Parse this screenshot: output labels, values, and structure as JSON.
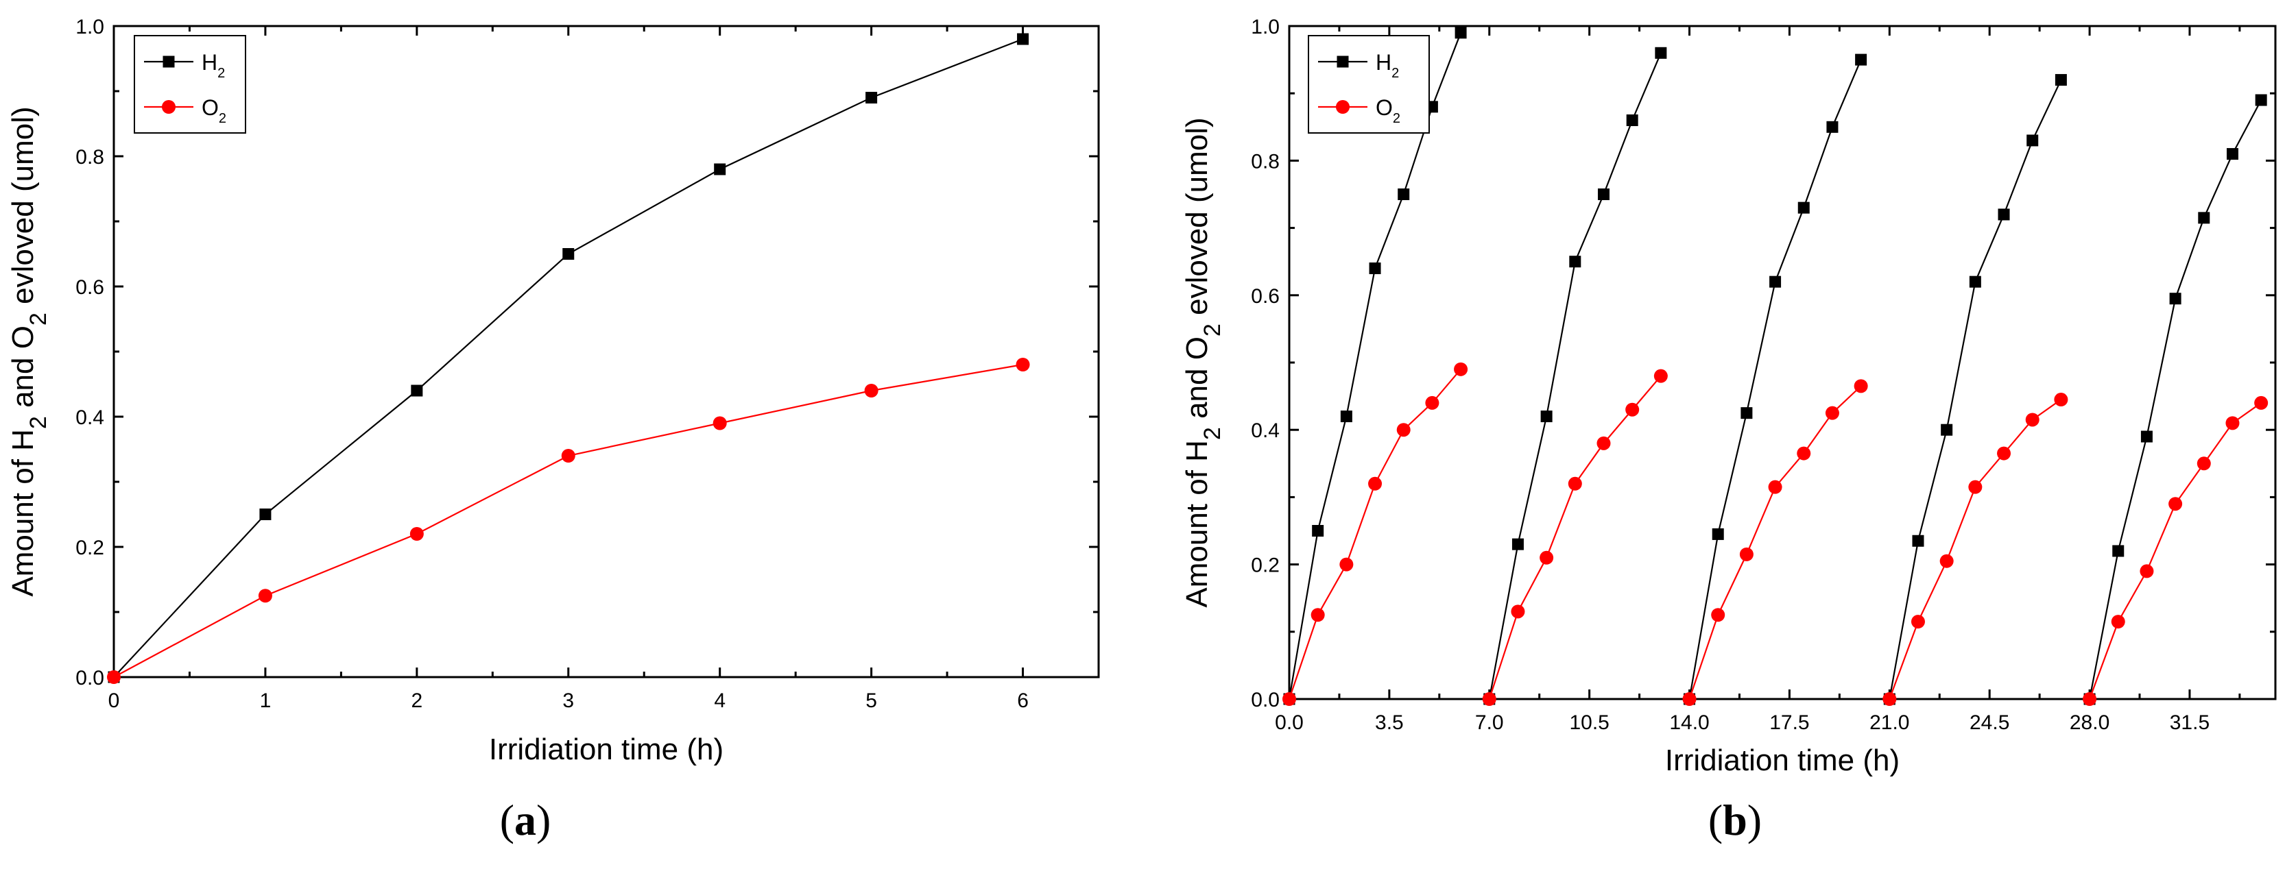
{
  "chart_data": [
    {
      "type": "line",
      "panel": "a",
      "panel_label": {
        "open": "(",
        "letter": "a",
        "close": ")"
      },
      "xlabel": "Irridiation time (h)",
      "ylabel": {
        "pre": "Amount of H",
        "sub1": "2",
        "mid": " and O",
        "sub2": "2",
        "post": " evloved (umol)"
      },
      "xlim": [
        0,
        6.5
      ],
      "ylim": [
        0,
        1.0
      ],
      "xticks": [
        0,
        1,
        2,
        3,
        4,
        5,
        6
      ],
      "xtick_labels": [
        "0",
        "1",
        "2",
        "3",
        "4",
        "5",
        "6"
      ],
      "yticks": [
        0,
        0.2,
        0.4,
        0.6,
        0.8,
        1.0
      ],
      "ytick_labels": [
        "0.0",
        "0.2",
        "0.4",
        "0.6",
        "0.8",
        "1.0"
      ],
      "legend": "top-left",
      "series": [
        {
          "name": "H",
          "sub": "2",
          "color": "#000000",
          "marker": "square",
          "segments": [
            [
              [
                0,
                0
              ],
              [
                1,
                0.25
              ],
              [
                2,
                0.44
              ],
              [
                3,
                0.65
              ],
              [
                4,
                0.78
              ],
              [
                5,
                0.89
              ],
              [
                6,
                0.98
              ]
            ]
          ]
        },
        {
          "name": "O",
          "sub": "2",
          "color": "#ff0000",
          "marker": "circle",
          "segments": [
            [
              [
                0,
                0
              ],
              [
                1,
                0.125
              ],
              [
                2,
                0.22
              ],
              [
                3,
                0.34
              ],
              [
                4,
                0.39
              ],
              [
                5,
                0.44
              ],
              [
                6,
                0.48
              ]
            ]
          ]
        }
      ]
    },
    {
      "type": "line",
      "panel": "b",
      "panel_label": {
        "open": "(",
        "letter": "b",
        "close": ")"
      },
      "xlabel": "Irridiation time (h)",
      "ylabel": {
        "pre": "Amount of H",
        "sub1": "2",
        "mid": " and O",
        "sub2": "2",
        "post": " evloved (umol)"
      },
      "xlim": [
        0,
        34.5
      ],
      "ylim": [
        0,
        1.0
      ],
      "xticks": [
        0,
        3.5,
        7,
        10.5,
        14,
        17.5,
        21,
        24.5,
        28,
        31.5
      ],
      "xtick_labels": [
        "0.0",
        "3.5",
        "7.0",
        "10.5",
        "14.0",
        "17.5",
        "21.0",
        "24.5",
        "28.0",
        "31.5"
      ],
      "yticks": [
        0,
        0.2,
        0.4,
        0.6,
        0.8,
        1.0
      ],
      "ytick_labels": [
        "0.0",
        "0.2",
        "0.4",
        "0.6",
        "0.8",
        "1.0"
      ],
      "legend": "top-left",
      "series": [
        {
          "name": "H",
          "sub": "2",
          "color": "#000000",
          "marker": "square",
          "segments": [
            [
              [
                0,
                0
              ],
              [
                1,
                0.25
              ],
              [
                2,
                0.42
              ],
              [
                3,
                0.64
              ],
              [
                4,
                0.75
              ],
              [
                5,
                0.88
              ],
              [
                6,
                0.99
              ]
            ],
            [
              [
                7,
                0
              ],
              [
                8,
                0.23
              ],
              [
                9,
                0.42
              ],
              [
                10,
                0.65
              ],
              [
                11,
                0.75
              ],
              [
                12,
                0.86
              ],
              [
                13,
                0.96
              ]
            ],
            [
              [
                14,
                0
              ],
              [
                15,
                0.245
              ],
              [
                16,
                0.425
              ],
              [
                17,
                0.62
              ],
              [
                18,
                0.73
              ],
              [
                19,
                0.85
              ],
              [
                20,
                0.95
              ]
            ],
            [
              [
                21,
                0
              ],
              [
                22,
                0.235
              ],
              [
                23,
                0.4
              ],
              [
                24,
                0.62
              ],
              [
                25,
                0.72
              ],
              [
                26,
                0.83
              ],
              [
                27,
                0.92
              ]
            ],
            [
              [
                28,
                0
              ],
              [
                29,
                0.22
              ],
              [
                30,
                0.39
              ],
              [
                31,
                0.595
              ],
              [
                32,
                0.715
              ],
              [
                33,
                0.81
              ],
              [
                34,
                0.89
              ]
            ]
          ]
        },
        {
          "name": "O",
          "sub": "2",
          "color": "#ff0000",
          "marker": "circle",
          "segments": [
            [
              [
                0,
                0
              ],
              [
                1,
                0.125
              ],
              [
                2,
                0.2
              ],
              [
                3,
                0.32
              ],
              [
                4,
                0.4
              ],
              [
                5,
                0.44
              ],
              [
                6,
                0.49
              ]
            ],
            [
              [
                7,
                0
              ],
              [
                8,
                0.13
              ],
              [
                9,
                0.21
              ],
              [
                10,
                0.32
              ],
              [
                11,
                0.38
              ],
              [
                12,
                0.43
              ],
              [
                13,
                0.48
              ]
            ],
            [
              [
                14,
                0
              ],
              [
                15,
                0.125
              ],
              [
                16,
                0.215
              ],
              [
                17,
                0.315
              ],
              [
                18,
                0.365
              ],
              [
                19,
                0.425
              ],
              [
                20,
                0.465
              ]
            ],
            [
              [
                21,
                0
              ],
              [
                22,
                0.115
              ],
              [
                23,
                0.205
              ],
              [
                24,
                0.315
              ],
              [
                25,
                0.365
              ],
              [
                26,
                0.415
              ],
              [
                27,
                0.445
              ]
            ],
            [
              [
                28,
                0
              ],
              [
                29,
                0.115
              ],
              [
                30,
                0.19
              ],
              [
                31,
                0.29
              ],
              [
                32,
                0.35
              ],
              [
                33,
                0.41
              ],
              [
                34,
                0.44
              ]
            ]
          ]
        }
      ]
    }
  ]
}
